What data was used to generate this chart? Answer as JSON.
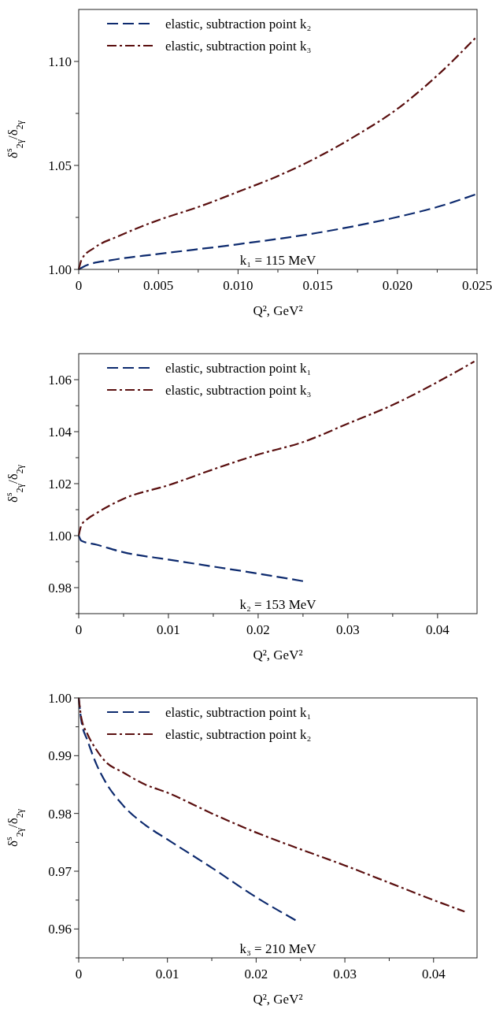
{
  "chart_data": [
    {
      "type": "line",
      "xlabel": "Q², GeV²",
      "ylabel": "δ$^{s}$$_{2γ}$/δ$_{2γ}$",
      "legend": "top left",
      "grid": false,
      "marker": "none",
      "xlim": [
        0,
        0.025
      ],
      "xticks": [
        0,
        {
          "value": 0.0025,
          "label": null
        },
        0.005,
        {
          "value": 0.0075,
          "label": null
        },
        {
          "value": 0.01,
          "label": "0.010"
        },
        {
          "value": 0.0125,
          "label": null
        },
        0.015,
        {
          "value": 0.0175,
          "label": null
        },
        {
          "value": 0.02,
          "label": "0.020"
        },
        {
          "value": 0.0225,
          "label": null
        },
        0.025
      ],
      "ylim": [
        1.0,
        1.125
      ],
      "yticks": [
        {
          "value": 1.0,
          "label": "1.00"
        },
        {
          "value": 1.025,
          "label": null
        },
        1.05,
        {
          "value": 1.075,
          "label": null
        },
        {
          "value": 1.1,
          "label": "1.10"
        }
      ],
      "annotations": [
        "k₁ = 115 MeV"
      ],
      "series": [
        {
          "name": "elastic, subtraction point k₂",
          "color": "#0d2a6e",
          "line_style": "dashed",
          "x": [
            0,
            0.0005,
            0.002,
            0.005,
            0.01,
            0.015,
            0.02,
            0.0225,
            0.025
          ],
          "values": [
            1.0,
            1.002,
            1.0044,
            1.0074,
            1.0121,
            1.0176,
            1.0252,
            1.03,
            1.0363
          ]
        },
        {
          "name": "elastic, subtraction point k₃",
          "color": "#5a0f0f",
          "line_style": "dashdot",
          "x": [
            0,
            0.0002,
            0.001,
            0.0025,
            0.005,
            0.0075,
            0.01,
            0.0125,
            0.015,
            0.0175,
            0.02,
            0.0225,
            0.025
          ],
          "values": [
            1.0,
            1.005,
            1.0105,
            1.016,
            1.0237,
            1.03,
            1.0373,
            1.0449,
            1.054,
            1.0648,
            1.0772,
            1.0932,
            1.1121
          ]
        }
      ]
    },
    {
      "type": "line",
      "xlabel": "Q², GeV²",
      "ylabel": "δ$^{s}$$_{2γ}$/δ$_{2γ}$",
      "legend": "top left",
      "grid": false,
      "marker": "none",
      "xlim": [
        0,
        0.0444
      ],
      "xticks": [
        0,
        {
          "value": 0.005,
          "label": null
        },
        0.01,
        {
          "value": 0.015,
          "label": null
        },
        0.02,
        {
          "value": 0.025,
          "label": null
        },
        0.03,
        {
          "value": 0.035,
          "label": null
        },
        0.04
      ],
      "ylim": [
        0.97,
        1.07
      ],
      "yticks": [
        {
          "value": 0.97,
          "label": null
        },
        0.98,
        {
          "value": 0.99,
          "label": null
        },
        {
          "value": 1.0,
          "label": "1.00"
        },
        {
          "value": 1.01,
          "label": null
        },
        1.02,
        {
          "value": 1.03,
          "label": null
        },
        1.04,
        {
          "value": 1.05,
          "label": null
        },
        1.06
      ],
      "annotations": [
        "k₂ = 153 MeV"
      ],
      "series": [
        {
          "name": "elastic, subtraction point k₁",
          "color": "#0d2a6e",
          "line_style": "dashed",
          "x": [
            0,
            0.0003,
            0.002,
            0.005,
            0.01,
            0.015,
            0.02,
            0.025
          ],
          "values": [
            1.0,
            0.998,
            0.9965,
            0.9936,
            0.9908,
            0.9881,
            0.9854,
            0.9825
          ]
        },
        {
          "name": "elastic, subtraction point k₃",
          "color": "#5a0f0f",
          "line_style": "dashdot",
          "x": [
            0,
            0.0003,
            0.001,
            0.002,
            0.005,
            0.01,
            0.015,
            0.02,
            0.025,
            0.03,
            0.035,
            0.04,
            0.0441
          ],
          "values": [
            1.0,
            1.004,
            1.0065,
            1.0087,
            1.0142,
            1.0194,
            1.0255,
            1.0312,
            1.036,
            1.0431,
            1.0503,
            1.0591,
            1.067
          ]
        }
      ]
    },
    {
      "type": "line",
      "xlabel": "Q², GeV²",
      "ylabel": "δ$^{s}$$_{2γ}$/δ$_{2γ}$",
      "legend": "top left",
      "grid": false,
      "marker": "none",
      "xlim": [
        0,
        0.0449
      ],
      "xticks": [
        0,
        {
          "value": 0.005,
          "label": null
        },
        0.01,
        {
          "value": 0.015,
          "label": null
        },
        0.02,
        {
          "value": 0.025,
          "label": null
        },
        0.03,
        {
          "value": 0.035,
          "label": null
        },
        0.04
      ],
      "ylim": [
        0.955,
        1.0
      ],
      "yticks": [
        {
          "value": 0.955,
          "label": null
        },
        0.96,
        {
          "value": 0.965,
          "label": null
        },
        0.97,
        {
          "value": 0.975,
          "label": null
        },
        0.98,
        {
          "value": 0.985,
          "label": null
        },
        0.99,
        {
          "value": 0.995,
          "label": null
        },
        {
          "value": 1.0,
          "label": "1.00"
        }
      ],
      "annotations": [
        "k₃ = 210 MeV"
      ],
      "series": [
        {
          "name": "elastic, subtraction point k₁",
          "color": "#0d2a6e",
          "line_style": "dashed",
          "x": [
            0,
            0.0003,
            0.001,
            0.002,
            0.003,
            0.005,
            0.0075,
            0.01,
            0.015,
            0.02,
            0.0247
          ],
          "values": [
            1.0,
            0.996,
            0.9926,
            0.9885,
            0.9855,
            0.9814,
            0.978,
            0.9755,
            0.9706,
            0.9655,
            0.9613
          ]
        },
        {
          "name": "elastic, subtraction point k₂",
          "color": "#5a0f0f",
          "line_style": "dashdot",
          "x": [
            0,
            0.0003,
            0.001,
            0.002,
            0.003,
            0.005,
            0.0075,
            0.01,
            0.015,
            0.02,
            0.025,
            0.03,
            0.035,
            0.04,
            0.0435
          ],
          "values": [
            1.0,
            0.9965,
            0.9937,
            0.991,
            0.989,
            0.9871,
            0.985,
            0.9836,
            0.98,
            0.9767,
            0.9738,
            0.971,
            0.968,
            0.965,
            0.963
          ]
        }
      ]
    }
  ]
}
